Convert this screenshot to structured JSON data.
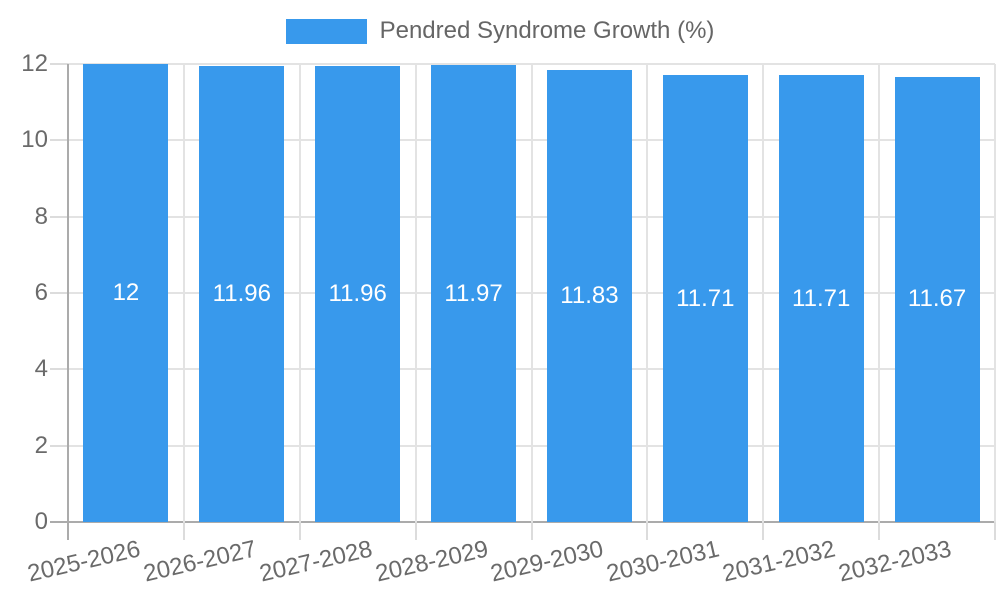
{
  "legend": {
    "label": "Pendred Syndrome Growth (%)"
  },
  "chart_data": {
    "type": "bar",
    "title": "Pendred Syndrome Growth (%)",
    "categories": [
      "2025-2026",
      "2026-2027",
      "2027-2028",
      "2028-2029",
      "2029-2030",
      "2030-2031",
      "2031-2032",
      "2032-2033"
    ],
    "series": [
      {
        "name": "Pendred Syndrome Growth (%)",
        "values": [
          12,
          11.96,
          11.96,
          11.97,
          11.83,
          11.71,
          11.71,
          11.67
        ]
      }
    ],
    "value_labels": [
      "12",
      "11.96",
      "11.96",
      "11.97",
      "11.83",
      "11.71",
      "11.71",
      "11.67"
    ],
    "xlabel": "",
    "ylabel": "",
    "ylim": [
      0,
      12
    ],
    "yticks": [
      0,
      2,
      4,
      6,
      8,
      10,
      12
    ],
    "grid": true,
    "legend_position": "top",
    "colors": {
      "bar": "#3899ec",
      "value_label": "#ffffff",
      "axis_text": "#6a6a6a",
      "legend_text": "#666666",
      "gridline": "#e3e3e3",
      "tick": "#dcdcdc",
      "axis_line": "#ababab"
    }
  }
}
